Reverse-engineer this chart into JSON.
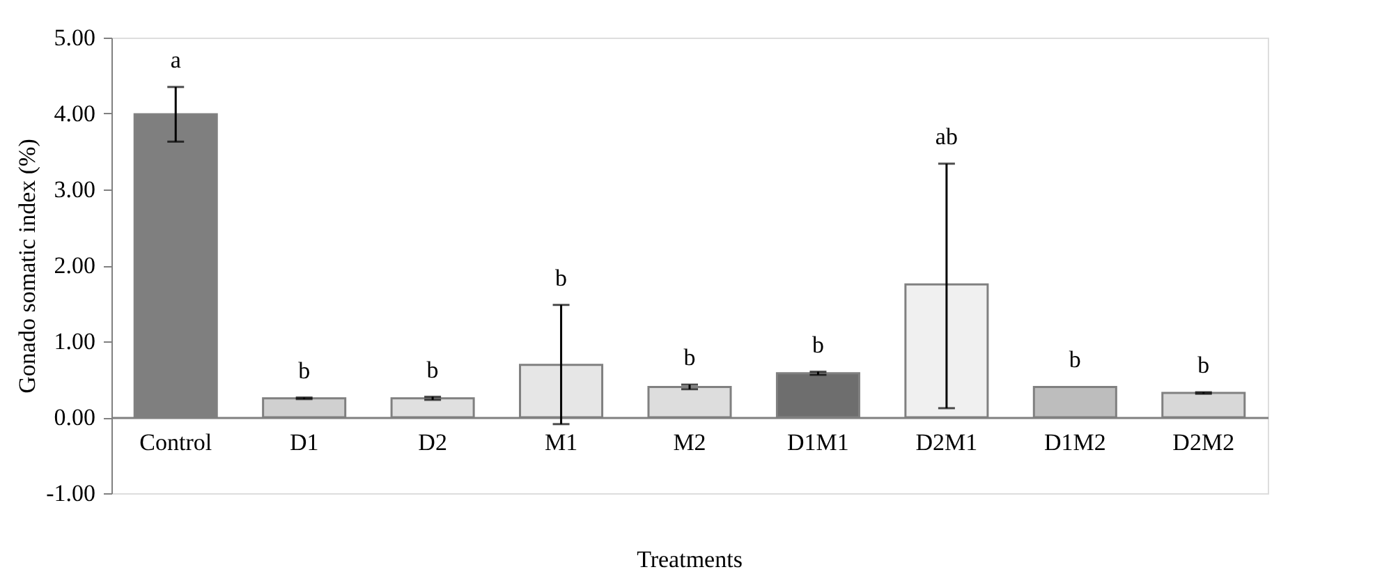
{
  "chart_data": {
    "type": "bar",
    "categories": [
      "Control",
      "D1",
      "D2",
      "M1",
      "M2",
      "D1M1",
      "D2M1",
      "D1M2",
      "D2M2"
    ],
    "values": [
      3.99,
      0.25,
      0.25,
      0.69,
      0.4,
      0.58,
      1.75,
      0.4,
      0.32
    ],
    "errors": [
      0.36,
      0.01,
      0.02,
      [
        -0.09,
        1.48
      ],
      0.03,
      0.02,
      [
        0.12,
        3.34
      ],
      null,
      0.01
    ],
    "colors": [
      "#7f7f7f",
      "#d0d0d0",
      "#e0e0e0",
      "#e6e6e6",
      "#dddddd",
      "#6e6e6e",
      "#f0f0f0",
      "#bdbdbd",
      "#d8d8d8"
    ],
    "xlabel": "Treatments",
    "ylabel": "Gonado somatic index (%)",
    "ylim": [
      -1,
      5
    ],
    "yticks": [
      {
        "value": -1,
        "label": "-1.00"
      },
      {
        "value": 0,
        "label": "0.00"
      },
      {
        "value": 1,
        "label": "1.00"
      },
      {
        "value": 2,
        "label": "2.00"
      },
      {
        "value": 3,
        "label": "3.00"
      },
      {
        "value": 4,
        "label": "4.00"
      },
      {
        "value": 5,
        "label": "5.00"
      }
    ],
    "annotations": [
      "a",
      "b",
      "b",
      "b",
      "b",
      "b",
      "ab",
      "b",
      "b"
    ]
  }
}
